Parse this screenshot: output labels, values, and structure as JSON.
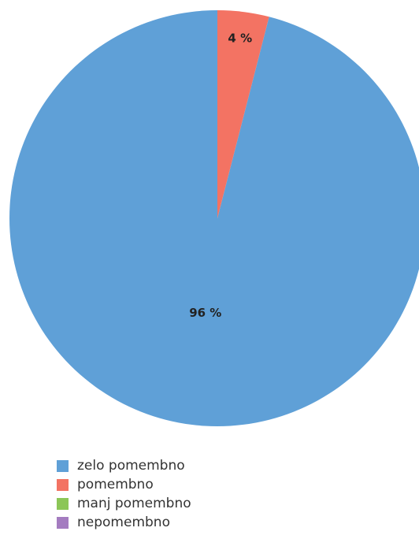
{
  "chart_data": {
    "type": "pie",
    "title": "",
    "slices": [
      {
        "label": "zelo pomembno",
        "value": 96,
        "display": "96 %",
        "color": "#5fa0d7"
      },
      {
        "label": "pomembno",
        "value": 4,
        "display": "4 %",
        "color": "#f37363"
      },
      {
        "label": "manj pomembno",
        "value": 0,
        "display": "",
        "color": "#8cc657"
      },
      {
        "label": "nepomembno",
        "value": 0,
        "display": "",
        "color": "#a47cc0"
      }
    ],
    "legend_position": "bottom-left"
  }
}
